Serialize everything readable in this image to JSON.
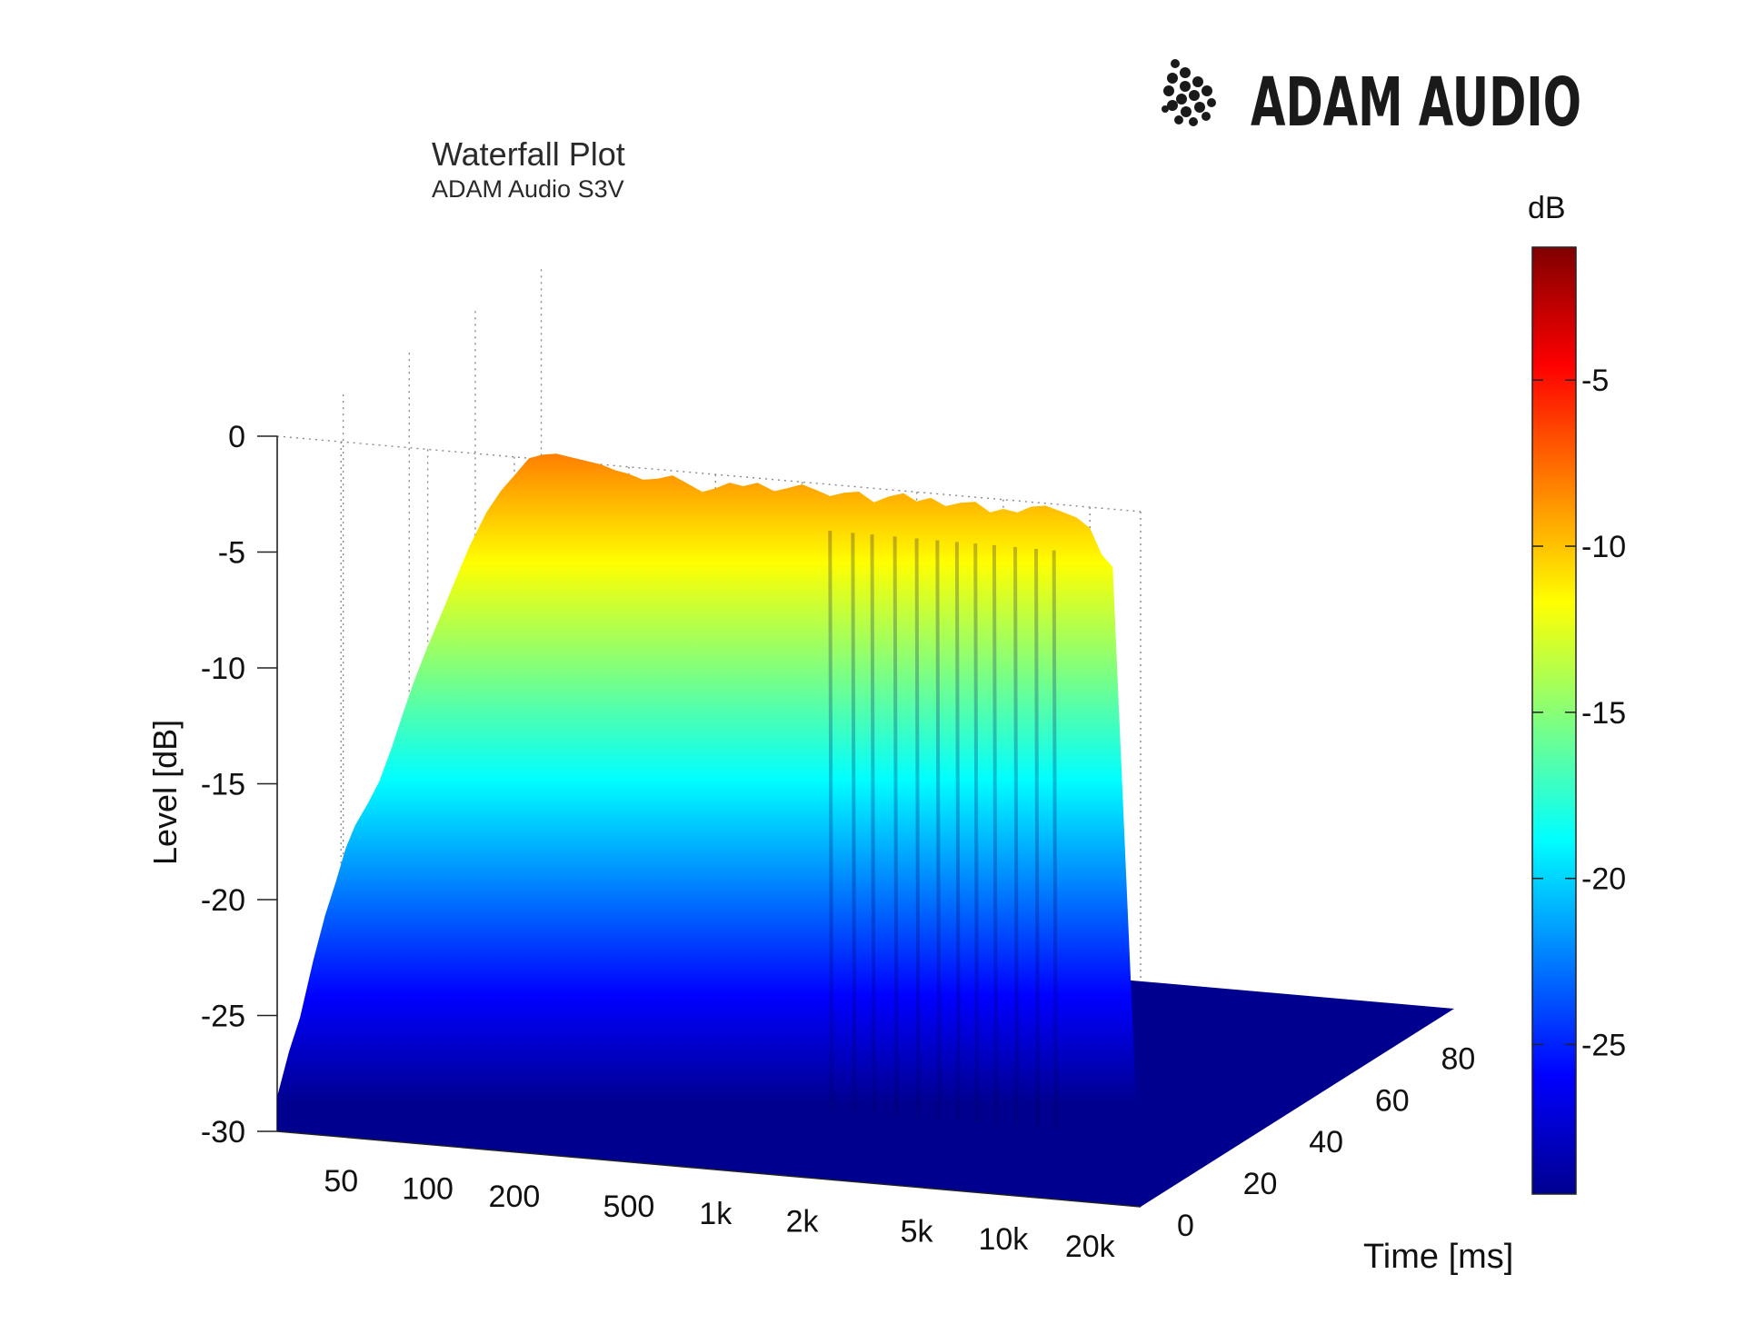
{
  "brand": {
    "name": "ADAM AUDIO"
  },
  "chart_data": {
    "type": "waterfall",
    "title": "Waterfall Plot",
    "subtitle": "ADAM Audio S3V",
    "zlabel": "Level [dB]",
    "ylabel": "Time [ms]",
    "xlabel": "",
    "z_ticks": [
      "0",
      "-5",
      "-10",
      "-15",
      "-20",
      "-25",
      "-30"
    ],
    "z_tick_values": [
      0,
      -5,
      -10,
      -15,
      -20,
      -25,
      -30
    ],
    "x_ticks": [
      "50",
      "100",
      "200",
      "500",
      "1k",
      "2k",
      "5k",
      "10k",
      "20k"
    ],
    "x_tick_values": [
      50,
      100,
      200,
      500,
      1000,
      2000,
      5000,
      10000,
      20000
    ],
    "y_ticks": [
      "0",
      "20",
      "40",
      "60",
      "80"
    ],
    "y_tick_values": [
      0,
      20,
      40,
      60,
      80
    ],
    "zlim": [
      -30,
      0
    ],
    "xlim": [
      30,
      30000
    ],
    "ylim": [
      0,
      95
    ],
    "x_scale": "log",
    "grid": true,
    "colorbar": {
      "label": "dB",
      "ticks": [
        "-5",
        "-10",
        "-15",
        "-20",
        "-25"
      ],
      "tick_values": [
        -5,
        -10,
        -15,
        -20,
        -25
      ],
      "range": [
        -29.5,
        -1
      ]
    },
    "front_response": {
      "frequency_hz": [
        30,
        33,
        36,
        40,
        44,
        48,
        52,
        56,
        62,
        68,
        75,
        82,
        90,
        100,
        112,
        125,
        140,
        160,
        180,
        200,
        225,
        250,
        280,
        315,
        355,
        400,
        450,
        500,
        560,
        630,
        710,
        800,
        900,
        1000,
        1120,
        1250,
        1400,
        1600,
        1800,
        2000,
        2250,
        2500,
        2800,
        3150,
        3550,
        4000,
        4500,
        5000,
        5600,
        6300,
        7100,
        8000,
        9000,
        10000,
        11200,
        12500,
        14000,
        16000,
        18000,
        20000,
        22000,
        24000
      ],
      "level_db": [
        -28.5,
        -26.5,
        -25.0,
        -22.5,
        -20.5,
        -19.0,
        -17.5,
        -16.5,
        -15.5,
        -14.5,
        -13.0,
        -11.5,
        -10.0,
        -8.5,
        -7.0,
        -5.5,
        -4.0,
        -2.5,
        -1.5,
        -0.8,
        0.0,
        0.2,
        0.3,
        0.2,
        0.1,
        0.0,
        -0.2,
        -0.3,
        -0.5,
        -0.4,
        -0.2,
        -0.5,
        -0.8,
        -0.6,
        -0.3,
        -0.4,
        -0.2,
        -0.5,
        -0.3,
        -0.1,
        -0.3,
        -0.5,
        -0.3,
        -0.2,
        -0.6,
        -0.3,
        -0.1,
        -0.4,
        -0.2,
        -0.5,
        -0.3,
        -0.2,
        -0.6,
        -0.4,
        -0.5,
        -0.2,
        -0.1,
        -0.3,
        -0.5,
        -0.9,
        -2.0,
        -2.5
      ]
    },
    "decay_notch_hz": [
      2500,
      3000,
      3500,
      4200,
      5000,
      5900,
      6900,
      8000,
      9300,
      11000,
      13000,
      15000
    ],
    "floor_db": -30
  }
}
